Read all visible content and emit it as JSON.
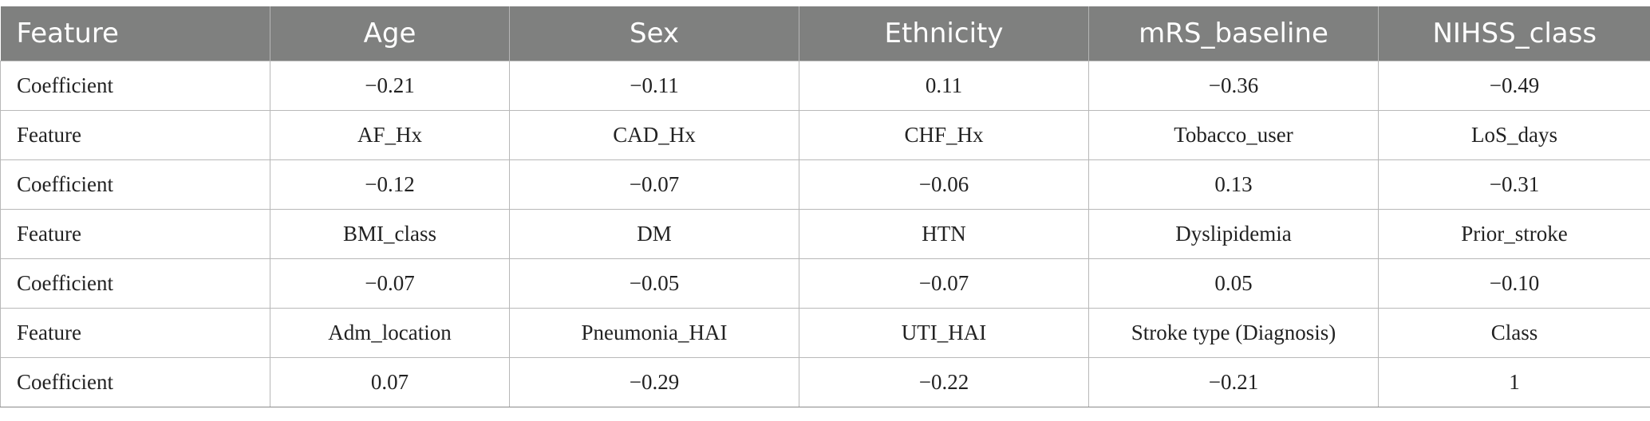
{
  "table": {
    "header": [
      "Feature",
      "Age",
      "Sex",
      "Ethnicity",
      "mRS_baseline",
      "NIHSS_class"
    ],
    "rows": [
      [
        "Coefficient",
        "−0.21",
        "−0.11",
        "0.11",
        "−0.36",
        "−0.49"
      ],
      [
        "Feature",
        "AF_Hx",
        "CAD_Hx",
        "CHF_Hx",
        "Tobacco_user",
        "LoS_days"
      ],
      [
        "Coefficient",
        "−0.12",
        "−0.07",
        "−0.06",
        "0.13",
        "−0.31"
      ],
      [
        "Feature",
        "BMI_class",
        "DM",
        "HTN",
        "Dyslipidemia",
        "Prior_stroke"
      ],
      [
        "Coefficient",
        "−0.07",
        "−0.05",
        "−0.07",
        "0.05",
        "−0.10"
      ],
      [
        "Feature",
        "Adm_location",
        "Pneumonia_HAI",
        "UTI_HAI",
        "Stroke type (Diagnosis)",
        "Class"
      ],
      [
        "Coefficient",
        "0.07",
        "−0.29",
        "−0.22",
        "−0.21",
        "1"
      ]
    ]
  },
  "colors": {
    "header_bg": "#7f807f",
    "header_text": "#ffffff",
    "grid": "#b8b8b8",
    "body_text": "#222222"
  }
}
